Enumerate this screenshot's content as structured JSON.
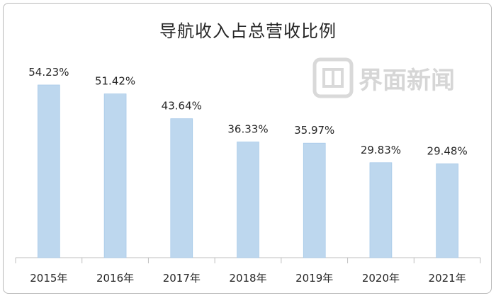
{
  "title": "导航收入占总营收比例",
  "watermark": {
    "text": "界面新闻",
    "color": "#d6d6d6"
  },
  "colors": {
    "bar": "#bdd7ee",
    "bar_edge": "#9dc3e6",
    "axis": "#bfbfbf",
    "text": "#262626"
  },
  "chart_data": {
    "type": "bar",
    "title": "导航收入占总营收比例",
    "categories": [
      "2015年",
      "2016年",
      "2017年",
      "2018年",
      "2019年",
      "2020年",
      "2021年"
    ],
    "values": [
      54.23,
      51.42,
      43.64,
      36.33,
      35.97,
      29.83,
      29.48
    ],
    "labels": [
      "54.23%",
      "51.42%",
      "43.64%",
      "36.33%",
      "35.97%",
      "29.83%",
      "29.48%"
    ],
    "unit": "%",
    "ylim": [
      0,
      72
    ],
    "grid": false,
    "legend": "none"
  }
}
